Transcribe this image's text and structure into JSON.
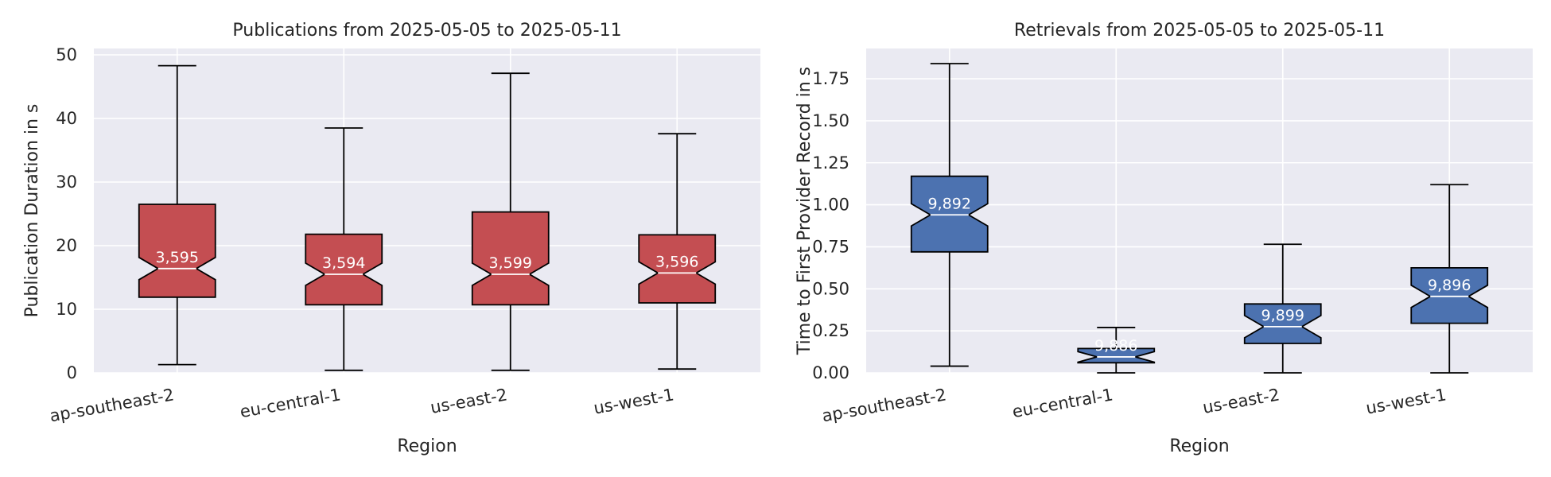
{
  "colors": {
    "axes_bg": "#eaeaf2",
    "grid": "#ffffff",
    "text": "#262626",
    "red_box": "#c44e52",
    "blue_box": "#4c72b0",
    "edge": "#000000",
    "count_label": "#ffffff"
  },
  "chart_data": [
    {
      "type": "box",
      "title": "Publications from 2025-05-05 to 2025-05-11",
      "xlabel": "Region",
      "ylabel": "Publication Duration in s",
      "ylim": [
        0,
        51
      ],
      "yticks": [
        0,
        10,
        20,
        30,
        40,
        50
      ],
      "ytick_labels": [
        "0",
        "10",
        "20",
        "30",
        "40",
        "50"
      ],
      "grid": true,
      "notched": true,
      "color": "red",
      "categories": [
        "ap-southeast-2",
        "eu-central-1",
        "us-east-2",
        "us-west-1"
      ],
      "boxes": [
        {
          "whislo": 1.3,
          "q1": 11.9,
          "med": 16.4,
          "q3": 26.5,
          "whishi": 48.3,
          "count_label": "3,595"
        },
        {
          "whislo": 0.4,
          "q1": 10.7,
          "med": 15.5,
          "q3": 21.8,
          "whishi": 38.5,
          "count_label": "3,594"
        },
        {
          "whislo": 0.4,
          "q1": 10.7,
          "med": 15.5,
          "q3": 25.3,
          "whishi": 47.1,
          "count_label": "3,599"
        },
        {
          "whislo": 0.6,
          "q1": 11.0,
          "med": 15.7,
          "q3": 21.7,
          "whishi": 37.6,
          "count_label": "3,596"
        }
      ]
    },
    {
      "type": "box",
      "title": "Retrievals from 2025-05-05 to 2025-05-11",
      "xlabel": "Region",
      "ylabel": "Time to First Provider Record in s",
      "ylim": [
        0,
        1.93
      ],
      "yticks": [
        0,
        0.25,
        0.5,
        0.75,
        1.0,
        1.25,
        1.5,
        1.75
      ],
      "ytick_labels": [
        "0.00",
        "0.25",
        "0.50",
        "0.75",
        "1.00",
        "1.25",
        "1.50",
        "1.75"
      ],
      "grid": true,
      "notched": true,
      "color": "blue",
      "categories": [
        "ap-southeast-2",
        "eu-central-1",
        "us-east-2",
        "us-west-1"
      ],
      "boxes": [
        {
          "whislo": 0.04,
          "q1": 0.72,
          "med": 0.94,
          "q3": 1.17,
          "whishi": 1.84,
          "count_label": "9,892"
        },
        {
          "whislo": 0.0,
          "q1": 0.06,
          "med": 0.095,
          "q3": 0.145,
          "whishi": 0.27,
          "count_label": "9,886"
        },
        {
          "whislo": 0.0,
          "q1": 0.175,
          "med": 0.275,
          "q3": 0.41,
          "whishi": 0.765,
          "count_label": "9,899"
        },
        {
          "whislo": 0.0,
          "q1": 0.295,
          "med": 0.455,
          "q3": 0.625,
          "whishi": 1.12,
          "count_label": "9,896"
        }
      ]
    }
  ]
}
